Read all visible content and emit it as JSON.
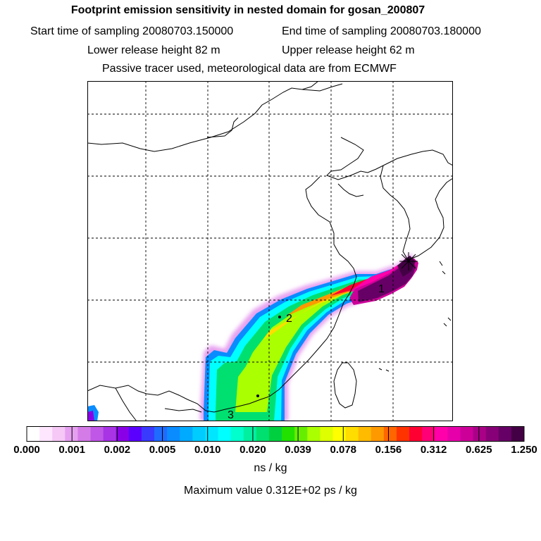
{
  "header": {
    "title": "Footprint emission sensitivity in nested domain for gosan_200807",
    "start_time": "Start time of sampling 20080703.150000",
    "end_time": "End time of sampling 20080703.180000",
    "lower_height": "Lower release height   82 m",
    "upper_height": "Upper release height   62 m",
    "tracer_note": "Passive tracer used, meteorological data are from ECMWF"
  },
  "map": {
    "labels": [
      "1",
      "2",
      "3"
    ],
    "grid": true
  },
  "colorbar": {
    "ticks": [
      "0.000",
      "0.001",
      "0.002",
      "0.005",
      "0.010",
      "0.020",
      "0.039",
      "0.078",
      "0.156",
      "0.312",
      "0.625",
      "1.250"
    ],
    "colors": [
      "#ffffff",
      "#ffe6ff",
      "#f5c8f5",
      "#e6a0f0",
      "#d47be8",
      "#c057e6",
      "#a834e6",
      "#8a00e6",
      "#5a00ff",
      "#3a3aff",
      "#1f6bff",
      "#0a8cff",
      "#00aaff",
      "#00ccff",
      "#00e6ff",
      "#00ffff",
      "#00ffcc",
      "#00f0a0",
      "#00e070",
      "#00d040",
      "#22e000",
      "#66ee00",
      "#aaff00",
      "#ddff00",
      "#ffff00",
      "#ffdd00",
      "#ffbb00",
      "#ff9900",
      "#ff6600",
      "#ff3300",
      "#ff0033",
      "#ff0077",
      "#ff00aa",
      "#e600aa",
      "#cc0099",
      "#aa0088",
      "#880077",
      "#660066",
      "#440044"
    ],
    "units": "ns / kg",
    "max_value": "Maximum value  0.312E+02 ps / kg"
  }
}
